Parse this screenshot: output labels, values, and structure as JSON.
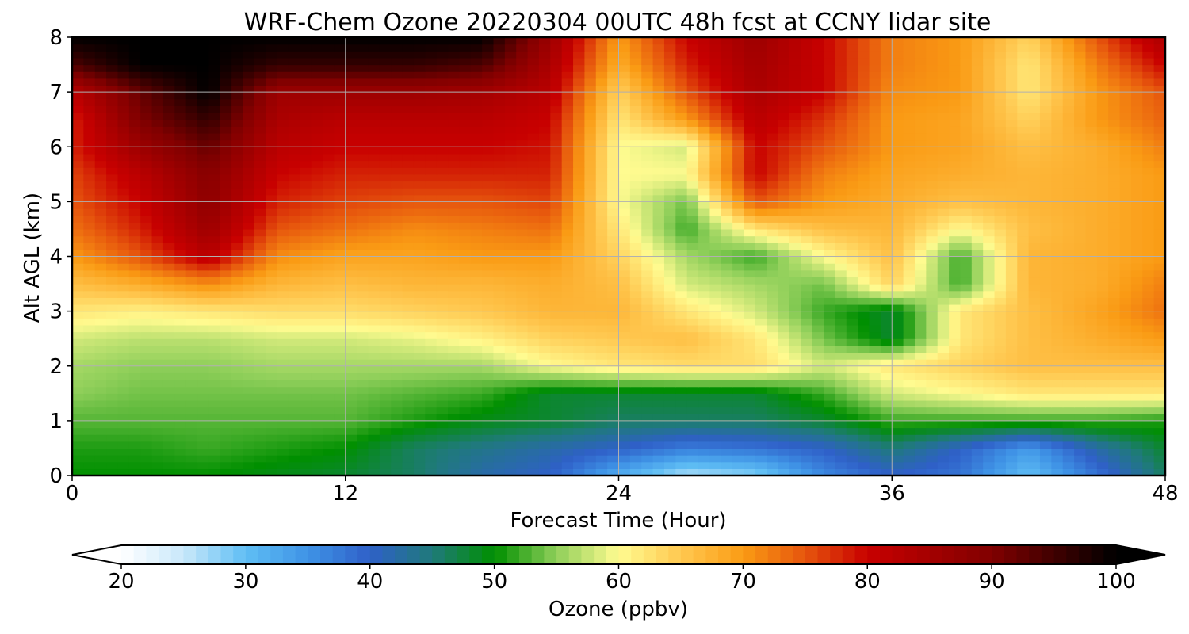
{
  "chart_data": {
    "type": "heatmap",
    "title": "WRF-Chem Ozone  20220304 00UTC 48h fcst at CCNY lidar site",
    "xlabel": "Forecast Time (Hour)",
    "ylabel": "Alt AGL (km)",
    "xlim": [
      0,
      48
    ],
    "ylim": [
      0,
      8
    ],
    "xticks": [
      0,
      12,
      24,
      36,
      48
    ],
    "yticks": [
      0,
      1,
      2,
      3,
      4,
      5,
      6,
      7,
      8
    ],
    "grid": true,
    "x_hours": [
      0,
      3,
      6,
      9,
      12,
      15,
      18,
      21,
      24,
      27,
      30,
      33,
      36,
      39,
      42,
      45,
      48
    ],
    "z_km": [
      0,
      0.5,
      1,
      1.5,
      2,
      2.5,
      3,
      3.5,
      4,
      4.5,
      5,
      5.5,
      6,
      6.5,
      7,
      7.5,
      8
    ],
    "ozone_ppbv": [
      [
        50,
        50,
        50,
        49,
        48,
        46,
        42,
        40,
        32,
        26,
        28,
        36,
        40,
        38,
        30,
        38,
        46
      ],
      [
        51,
        51,
        52,
        51,
        50,
        46,
        44,
        42,
        40,
        37,
        38,
        40,
        45,
        40,
        34,
        42,
        48
      ],
      [
        53,
        53,
        53,
        53,
        53,
        51,
        49,
        48,
        46,
        46,
        46,
        48,
        52,
        52,
        52,
        52,
        51
      ],
      [
        55,
        54,
        54,
        54,
        54,
        53,
        52,
        48,
        48,
        48,
        48,
        52,
        58,
        60,
        62,
        62,
        62
      ],
      [
        56,
        55,
        55,
        56,
        56,
        56,
        56,
        60,
        62,
        63,
        63,
        58,
        62,
        64,
        66,
        66,
        66
      ],
      [
        58,
        57,
        57,
        58,
        58,
        59,
        61,
        64,
        65,
        66,
        62,
        54,
        48,
        62,
        66,
        68,
        70
      ],
      [
        62,
        61,
        62,
        63,
        63,
        64,
        65,
        67,
        67,
        62,
        58,
        52,
        48,
        62,
        66,
        69,
        73
      ],
      [
        66,
        68,
        71,
        67,
        66,
        67,
        67,
        68,
        66,
        58,
        56,
        54,
        64,
        52,
        67,
        68,
        72
      ],
      [
        70,
        75,
        82,
        71,
        69,
        69,
        70,
        70,
        64,
        56,
        52,
        60,
        66,
        52,
        67,
        68,
        70
      ],
      [
        73,
        78,
        86,
        75,
        73,
        71,
        72,
        73,
        62,
        52,
        62,
        66,
        67,
        60,
        66,
        68,
        70
      ],
      [
        75,
        80,
        88,
        78,
        76,
        75,
        75,
        76,
        60,
        54,
        75,
        70,
        68,
        66,
        67,
        68,
        70
      ],
      [
        76,
        82,
        89,
        80,
        78,
        78,
        78,
        78,
        60,
        60,
        80,
        72,
        69,
        68,
        67,
        68,
        70
      ],
      [
        78,
        86,
        92,
        82,
        80,
        80,
        80,
        79,
        60,
        58,
        80,
        75,
        70,
        69,
        66,
        68,
        72
      ],
      [
        78,
        90,
        96,
        84,
        82,
        82,
        82,
        80,
        62,
        70,
        82,
        77,
        70,
        69,
        64,
        70,
        74
      ],
      [
        82,
        92,
        100,
        86,
        86,
        86,
        85,
        82,
        64,
        75,
        84,
        80,
        71,
        70,
        62,
        70,
        75
      ],
      [
        94,
        100,
        100,
        96,
        96,
        96,
        94,
        84,
        68,
        78,
        85,
        80,
        72,
        70,
        62,
        72,
        80
      ],
      [
        100,
        100,
        100,
        100,
        100,
        100,
        100,
        86,
        70,
        80,
        86,
        80,
        72,
        70,
        64,
        75,
        84
      ]
    ],
    "colorbar": {
      "label": "Ozone  (ppbv)",
      "ticks": [
        20,
        30,
        40,
        50,
        60,
        70,
        80,
        90,
        100
      ],
      "extend": "both",
      "min": 20,
      "max": 100,
      "stops": [
        {
          "v": 20,
          "c": "#ffffff"
        },
        {
          "v": 25,
          "c": "#c8e8fa"
        },
        {
          "v": 30,
          "c": "#5fbef4"
        },
        {
          "v": 35,
          "c": "#3f93e6"
        },
        {
          "v": 40,
          "c": "#2f60c8"
        },
        {
          "v": 45,
          "c": "#1f7a7a"
        },
        {
          "v": 50,
          "c": "#008f00"
        },
        {
          "v": 55,
          "c": "#8fcf5a"
        },
        {
          "v": 60,
          "c": "#fffb90"
        },
        {
          "v": 65,
          "c": "#ffc850"
        },
        {
          "v": 70,
          "c": "#fa9b14"
        },
        {
          "v": 75,
          "c": "#e6550d"
        },
        {
          "v": 80,
          "c": "#c80000"
        },
        {
          "v": 90,
          "c": "#800000"
        },
        {
          "v": 100,
          "c": "#000000"
        }
      ]
    }
  }
}
